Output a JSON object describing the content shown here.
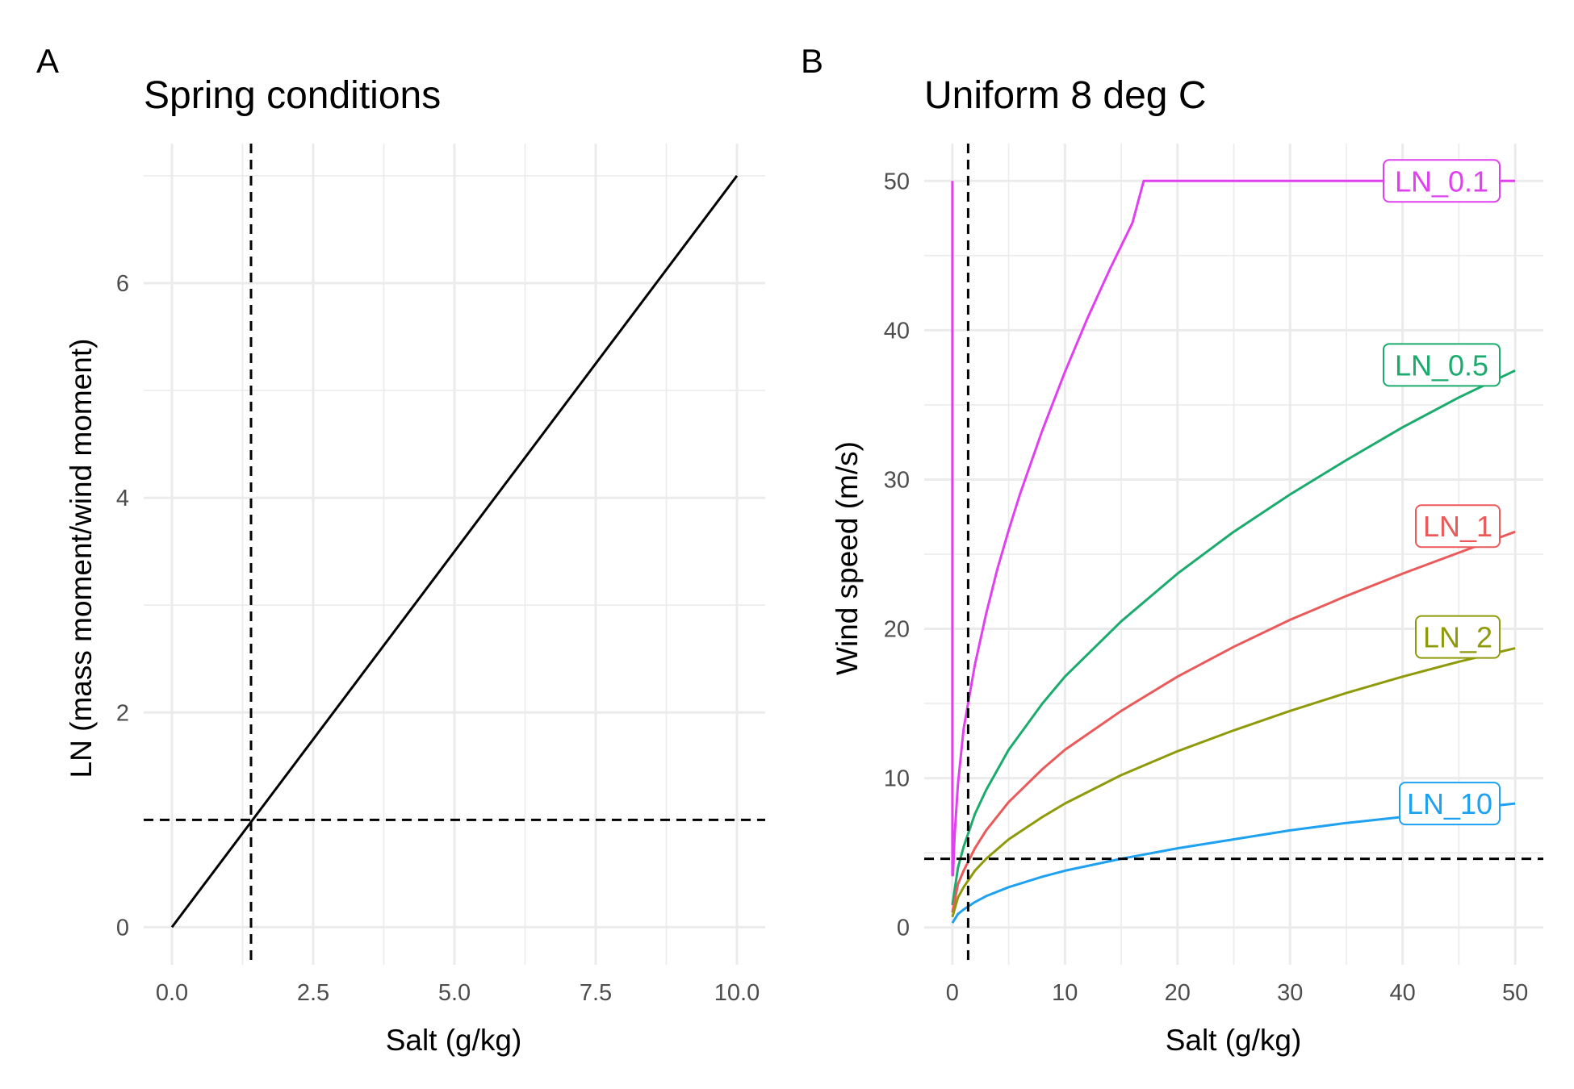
{
  "chart_data": [
    {
      "panel": "A",
      "type": "line",
      "title": "Spring conditions",
      "xlabel": "Salt (g/kg)",
      "ylabel": "LN (mass moment/wind moment)",
      "xlim": [
        -0.5,
        10.5
      ],
      "ylim": [
        -0.35,
        7.3
      ],
      "xticks": [
        0,
        2.5,
        5,
        7.5,
        10
      ],
      "xtick_labels": [
        "0.0",
        "2.5",
        "5.0",
        "7.5",
        "10.0"
      ],
      "yticks": [
        0,
        2,
        4,
        6
      ],
      "ytick_labels": [
        "0",
        "2",
        "4",
        "6"
      ],
      "grid": true,
      "series": [
        {
          "color": "#000000",
          "x": [
            0,
            10
          ],
          "y": [
            0,
            7
          ]
        }
      ],
      "reference_lines": {
        "vline_x": 1.4,
        "hline_y": 1
      }
    },
    {
      "panel": "B",
      "type": "line",
      "title": "Uniform 8 deg C",
      "xlabel": "Salt (g/kg)",
      "ylabel": "Wind speed (m/s)",
      "xlim": [
        -2.5,
        52.5
      ],
      "ylim": [
        -2.5,
        52.5
      ],
      "xticks": [
        0,
        10,
        20,
        30,
        40,
        50
      ],
      "xtick_labels": [
        "0",
        "10",
        "20",
        "30",
        "40",
        "50"
      ],
      "yticks": [
        0,
        10,
        20,
        30,
        40,
        50
      ],
      "ytick_labels": [
        "0",
        "10",
        "20",
        "30",
        "40",
        "50"
      ],
      "grid": true,
      "reference_lines": {
        "vline_x": 1.4,
        "hline_y": 4.6
      },
      "series": [
        {
          "name": "LN_0.1",
          "color": "#e040f0",
          "x": [
            0,
            0,
            0.05,
            0.2,
            0.5,
            1,
            2,
            3,
            4,
            5,
            6,
            8,
            10,
            12,
            14,
            16,
            17,
            20,
            30,
            40,
            50
          ],
          "y": [
            50,
            3.5,
            3.5,
            6.2,
            9.6,
            13.3,
            17.6,
            21.0,
            24.0,
            26.6,
            29.0,
            33.3,
            37.2,
            40.8,
            44.1,
            47.2,
            50,
            50,
            50,
            50,
            50
          ]
        },
        {
          "name": "LN_0.5",
          "color": "#1aab6d",
          "x": [
            0,
            0.5,
            1,
            2,
            3,
            5,
            8,
            10,
            15,
            20,
            25,
            30,
            35,
            40,
            45,
            50
          ],
          "y": [
            1.5,
            4.0,
            5.4,
            7.6,
            9.2,
            11.9,
            15.0,
            16.8,
            20.5,
            23.7,
            26.5,
            29.0,
            31.3,
            33.5,
            35.5,
            37.3
          ]
        },
        {
          "name": "LN_1",
          "color": "#eb5a5a",
          "x": [
            0,
            0.5,
            1,
            2,
            3,
            5,
            8,
            10,
            15,
            20,
            25,
            30,
            35,
            40,
            45,
            50
          ],
          "y": [
            1.0,
            2.9,
            3.8,
            5.3,
            6.5,
            8.4,
            10.6,
            11.9,
            14.5,
            16.8,
            18.8,
            20.6,
            22.2,
            23.7,
            25.1,
            26.5
          ]
        },
        {
          "name": "LN_2",
          "color": "#8f9a0a",
          "x": [
            0,
            0.5,
            1,
            2,
            3,
            5,
            8,
            10,
            15,
            20,
            25,
            30,
            35,
            40,
            45,
            50
          ],
          "y": [
            0.7,
            2.0,
            2.7,
            3.8,
            4.6,
            5.9,
            7.4,
            8.3,
            10.2,
            11.8,
            13.2,
            14.5,
            15.7,
            16.8,
            17.8,
            18.7
          ]
        },
        {
          "name": "LN_10",
          "color": "#1ea1f0",
          "x": [
            0,
            0.5,
            1,
            2,
            3,
            5,
            8,
            10,
            15,
            20,
            25,
            30,
            35,
            40,
            45,
            50
          ],
          "y": [
            0.3,
            0.9,
            1.2,
            1.7,
            2.1,
            2.7,
            3.4,
            3.8,
            4.6,
            5.3,
            5.9,
            6.5,
            7.0,
            7.4,
            7.9,
            8.3
          ]
        }
      ],
      "legend": "direct labels at right end of each series"
    }
  ]
}
